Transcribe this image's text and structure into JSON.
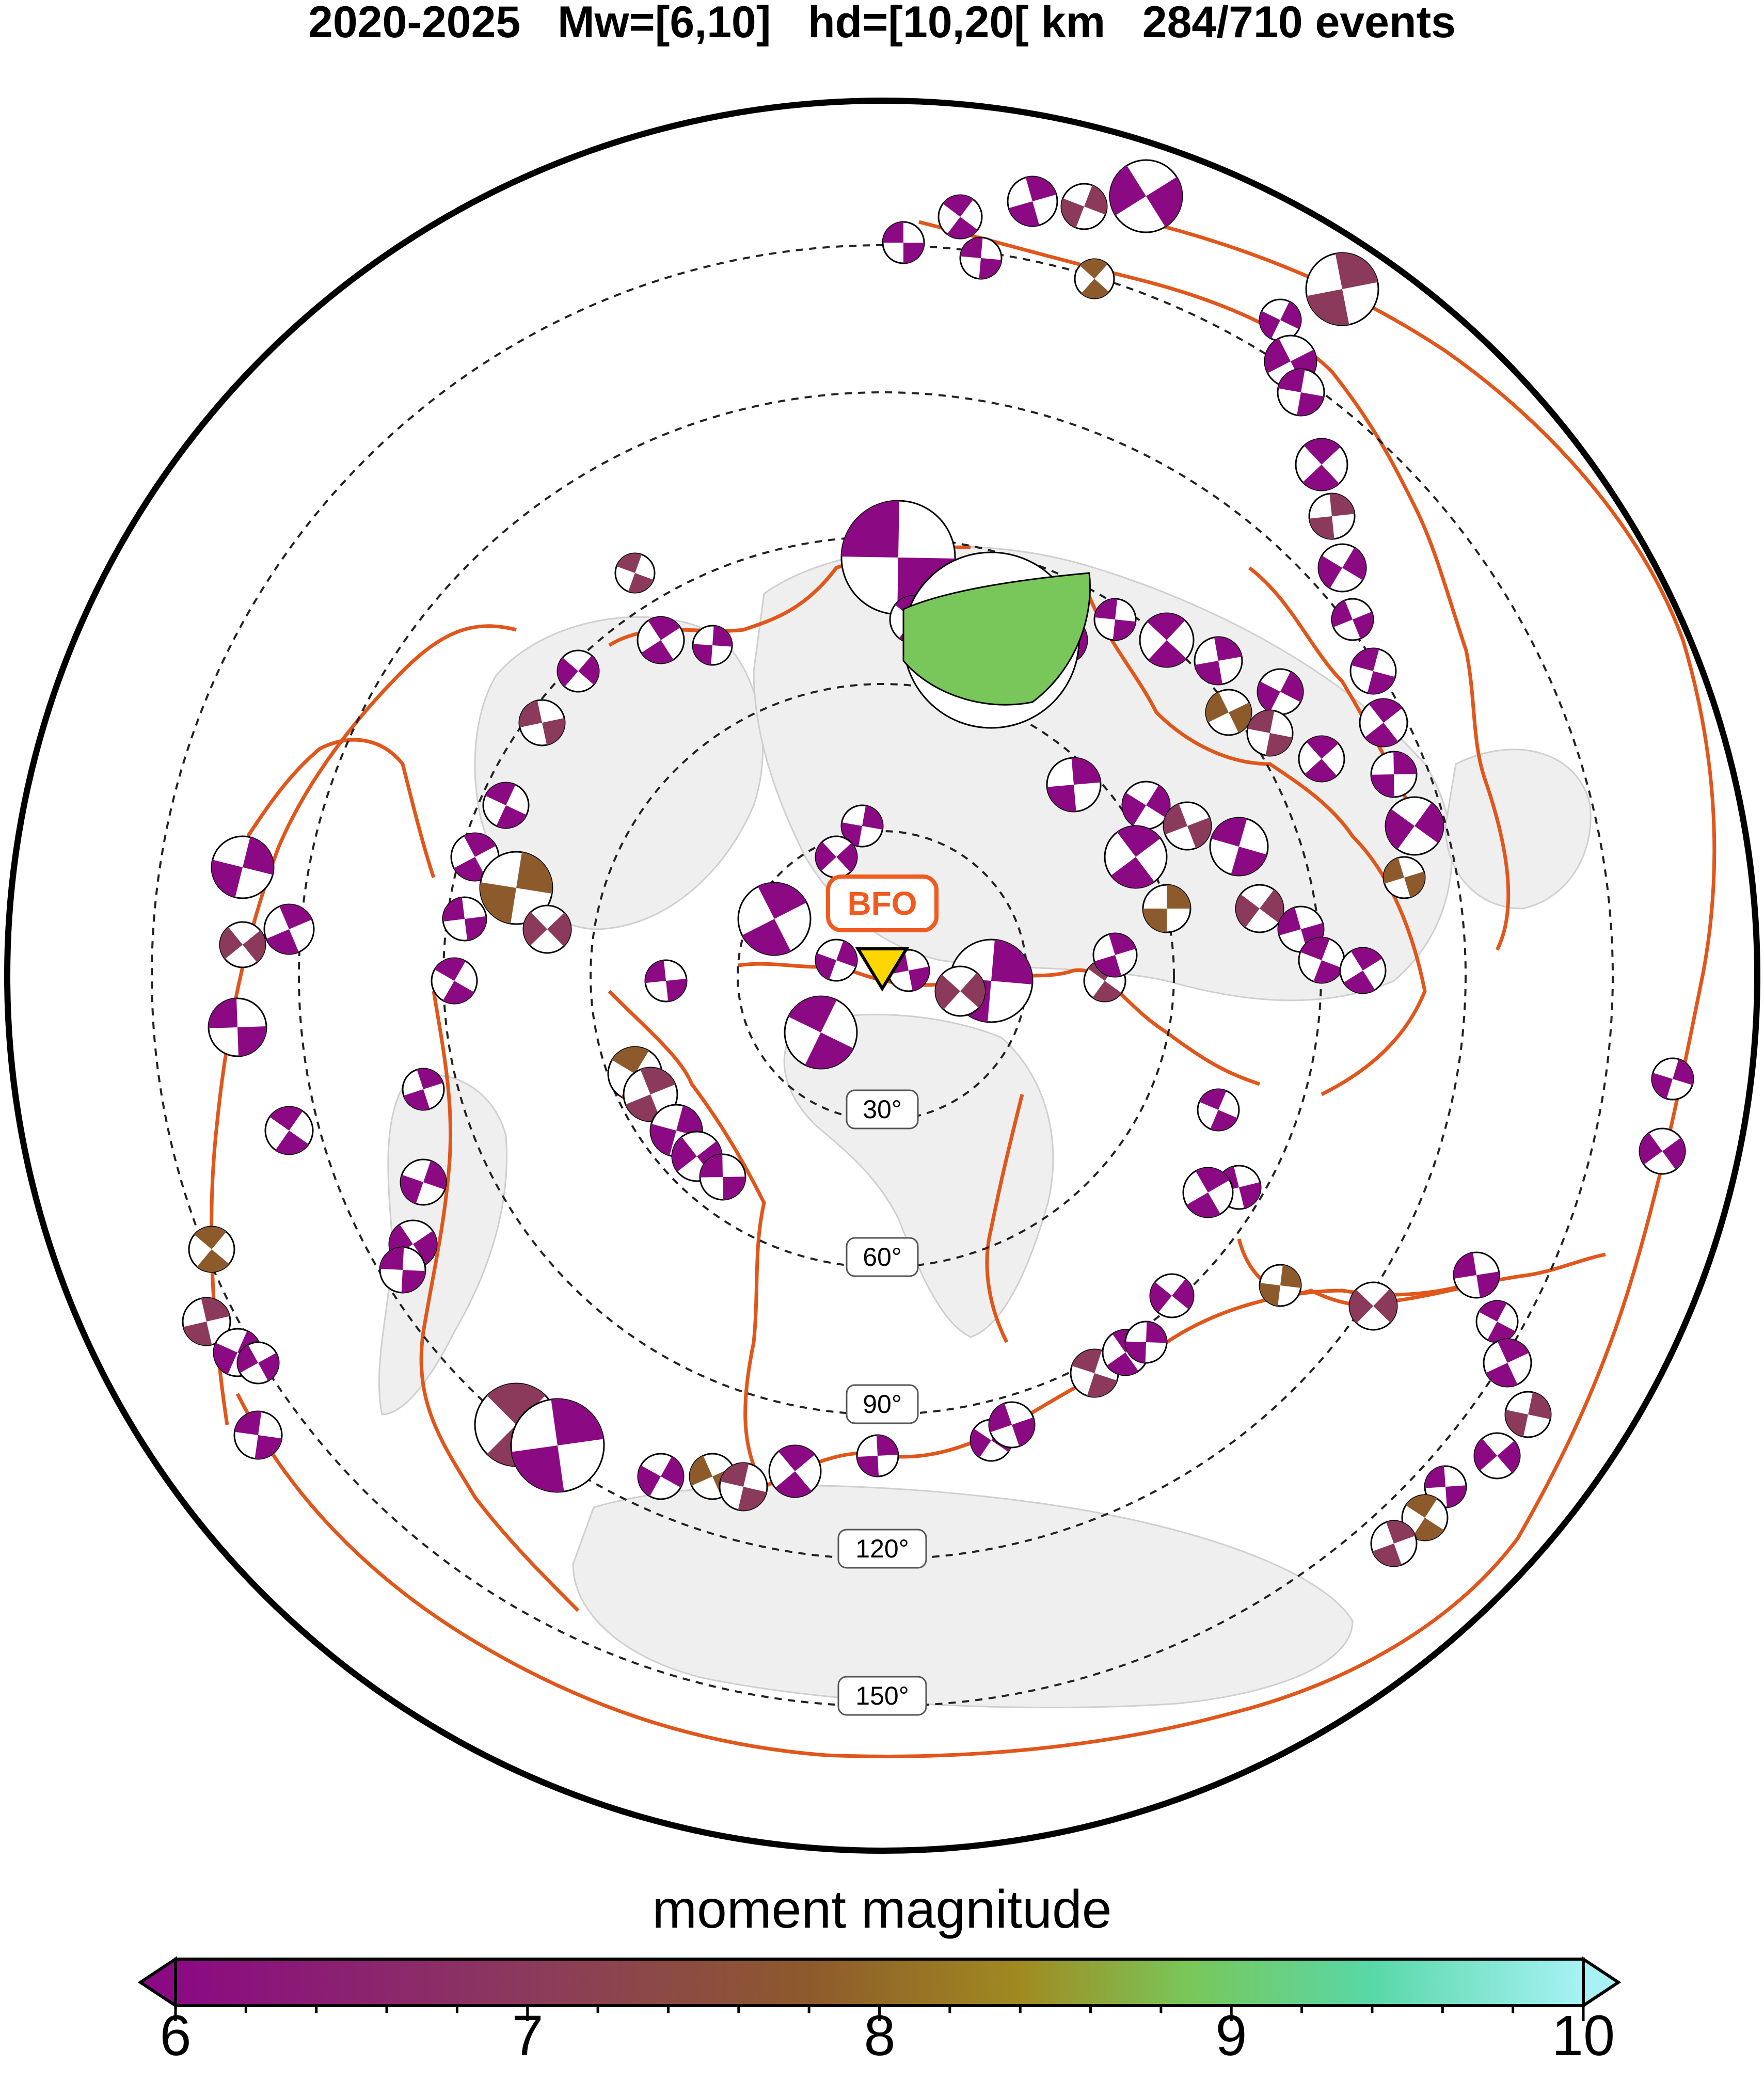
{
  "title": {
    "period": "2020-2025",
    "magnitude_range": "Mw=[6,10]",
    "depth_range": "hd=[10,20[ km",
    "event_count": "284/710 events"
  },
  "map": {
    "projection": "azimuthal-equidistant",
    "station": {
      "label": "BFO",
      "color": "#ffd700"
    },
    "distance_rings": [
      "30°",
      "60°",
      "90°",
      "120°",
      "150°"
    ],
    "plate_boundary_color": "#e0561b",
    "land_color": "#efefef",
    "beachball_color_scale": [
      "#8b0a83",
      "#8b3a5c",
      "#8d5a2c",
      "#a08a20",
      "#79c75a",
      "#58d8a8",
      "#a8f2f5"
    ]
  },
  "colorbar": {
    "label": "moment magnitude",
    "ticks": [
      "6",
      "7",
      "8",
      "9",
      "10"
    ],
    "min": 6,
    "max": 10
  }
}
